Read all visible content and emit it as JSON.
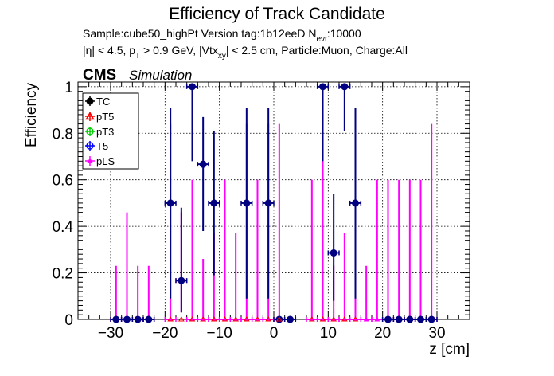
{
  "header": {
    "title": "Efficiency of Track Candidate",
    "line1_a": "Sample:cube50_highPt   Version tag:1b12eeD  N",
    "line1_sub": "evt",
    "line1_b": ":10000",
    "line2_a": "|η| < 4.5, p",
    "line2_sub1": "T",
    "line2_b": " > 0.9 GeV, |Vtx",
    "line2_sub2": "xy",
    "line2_c": "| < 2.5 cm, Particle:Muon, Charge:All"
  },
  "brand": {
    "cms": "CMS",
    "simulation": "Simulation"
  },
  "chart_data": {
    "type": "scatter",
    "xlabel": "z [cm]",
    "ylabel": "Efficiency",
    "xlim": [
      -36,
      36
    ],
    "ylim": [
      0,
      1.02
    ],
    "xticks": [
      -30,
      -20,
      -10,
      0,
      10,
      20,
      30
    ],
    "yticks": [
      0,
      0.2,
      0.4,
      0.6,
      0.8,
      1
    ],
    "ytick_labels": [
      "0",
      "0.2",
      "0.4",
      "0.6",
      "0.8",
      "1"
    ],
    "grid": true,
    "legend_position": "top-left",
    "series": [
      {
        "name": "TC",
        "marker": "filled-circle",
        "color": "#000080",
        "points": [
          {
            "x": -29,
            "y": 0
          },
          {
            "x": -27,
            "y": 0
          },
          {
            "x": -25,
            "y": 0
          },
          {
            "x": -23,
            "y": 0
          },
          {
            "x": -19,
            "y": 0.5,
            "ylo": 0.09,
            "yhi": 0.91
          },
          {
            "x": -17,
            "y": 0.167,
            "ylo": 0.03,
            "yhi": 0.48
          },
          {
            "x": -15,
            "y": 1,
            "ylo": 0.68,
            "yhi": 1
          },
          {
            "x": -13,
            "y": 0.667,
            "ylo": 0.38,
            "yhi": 0.87
          },
          {
            "x": -11,
            "y": 0.5,
            "ylo": 0.19,
            "yhi": 0.81
          },
          {
            "x": -5,
            "y": 0.5,
            "ylo": 0.09,
            "yhi": 0.91
          },
          {
            "x": -1,
            "y": 0.5,
            "ylo": 0.09,
            "yhi": 0.91
          },
          {
            "x": 1,
            "y": 0
          },
          {
            "x": 3,
            "y": 0
          },
          {
            "x": 9,
            "y": 1,
            "ylo": 0.68,
            "yhi": 1
          },
          {
            "x": 11,
            "y": 0.286,
            "ylo": 0.08,
            "yhi": 0.54
          },
          {
            "x": 13,
            "y": 1,
            "ylo": 0.81,
            "yhi": 1
          },
          {
            "x": 15,
            "y": 0.5,
            "ylo": 0.09,
            "yhi": 0.91
          },
          {
            "x": 21,
            "y": 0
          },
          {
            "x": 23,
            "y": 0
          },
          {
            "x": 25,
            "y": 0
          },
          {
            "x": 27,
            "y": 0
          },
          {
            "x": 29,
            "y": 0
          }
        ]
      },
      {
        "name": "pT5",
        "marker": "open-triangle",
        "color": "#ff0000",
        "points": []
      },
      {
        "name": "pT3",
        "marker": "open-circle",
        "color": "#00cc00",
        "points": []
      },
      {
        "name": "T5",
        "marker": "open-circle",
        "color": "#0000ff",
        "points": []
      },
      {
        "name": "pLS",
        "marker": "triangle",
        "color": "#ff00ff",
        "points": [
          {
            "x": -29,
            "y": 0,
            "ylo": 0,
            "yhi": 0.23
          },
          {
            "x": -27,
            "y": 0,
            "ylo": 0,
            "yhi": 0.46
          },
          {
            "x": -25,
            "y": 0,
            "ylo": 0,
            "yhi": 0.23
          },
          {
            "x": -23,
            "y": 0,
            "ylo": 0,
            "yhi": 0.23
          },
          {
            "x": -19,
            "y": 0,
            "ylo": 0,
            "yhi": 0.84
          },
          {
            "x": -17,
            "y": 0.167,
            "ylo": 0.03,
            "yhi": 0.46
          },
          {
            "x": -15,
            "y": 0,
            "ylo": 0,
            "yhi": 0.6
          },
          {
            "x": -13,
            "y": 0,
            "ylo": 0,
            "yhi": 0.26
          },
          {
            "x": -11,
            "y": 0,
            "ylo": 0,
            "yhi": 0.37
          },
          {
            "x": -9,
            "y": 0,
            "ylo": 0,
            "yhi": 0.6
          },
          {
            "x": -7,
            "y": 0,
            "ylo": 0,
            "yhi": 0.37
          },
          {
            "x": -5,
            "y": 0,
            "ylo": 0,
            "yhi": 0.84
          },
          {
            "x": -3,
            "y": 0,
            "ylo": 0,
            "yhi": 0.6
          },
          {
            "x": -1,
            "y": 0,
            "ylo": 0,
            "yhi": 0.84
          },
          {
            "x": 1,
            "y": 0,
            "ylo": 0,
            "yhi": 0.84
          },
          {
            "x": 7,
            "y": 0,
            "ylo": 0,
            "yhi": 0.6
          },
          {
            "x": 9,
            "y": 0,
            "ylo": 0,
            "yhi": 0.84
          },
          {
            "x": 11,
            "y": 0,
            "ylo": 0,
            "yhi": 0.23
          },
          {
            "x": 13,
            "y": 0,
            "ylo": 0,
            "yhi": 0.37
          },
          {
            "x": 15,
            "y": 0,
            "ylo": 0,
            "yhi": 0.84
          },
          {
            "x": 17,
            "y": 0,
            "ylo": 0,
            "yhi": 0.23
          },
          {
            "x": 19,
            "y": 0,
            "ylo": 0,
            "yhi": 0.6
          },
          {
            "x": 21,
            "y": 0,
            "ylo": 0,
            "yhi": 0.6
          },
          {
            "x": 23,
            "y": 0,
            "ylo": 0,
            "yhi": 0.6
          },
          {
            "x": 25,
            "y": 0,
            "ylo": 0,
            "yhi": 0.6
          },
          {
            "x": 27,
            "y": 0,
            "ylo": 0,
            "yhi": 0.6
          },
          {
            "x": 29,
            "y": 0,
            "ylo": 0,
            "yhi": 0.84
          }
        ]
      }
    ]
  }
}
